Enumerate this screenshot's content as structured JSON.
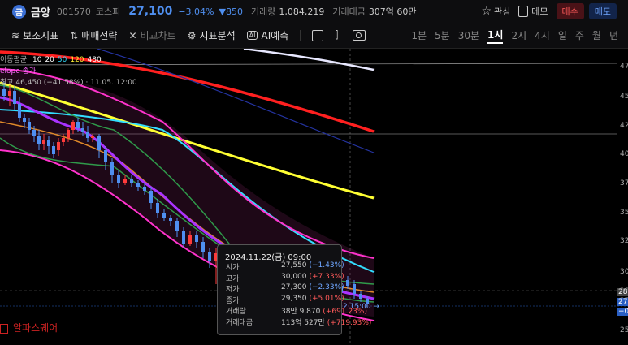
{
  "header": {
    "logo_text": "금",
    "name": "금양",
    "code": "001570",
    "market": "코스피",
    "price": "27,100",
    "change_pct": "−3.04%",
    "change_abs": "▼850",
    "volume_label": "거래량",
    "volume_value": "1,084,219",
    "amount_label": "거래대금",
    "amount_value": "307억 60만",
    "watch_label": "관심",
    "memo_label": "메모",
    "buy_label": "매수",
    "sell_label": "매도"
  },
  "toolbar": {
    "aux": "보조지표",
    "trade": "매매전략",
    "compare": "비교차트",
    "analysis": "지표분석",
    "ai": "AI예측",
    "timeframes": [
      "1분",
      "5분",
      "30분",
      "1시",
      "2시",
      "4시",
      "일",
      "주",
      "월",
      "년"
    ],
    "active_timeframe": "1시"
  },
  "legend": {
    "ma_label": "이동평균",
    "ma_values": [
      "10",
      "20",
      "50",
      "120",
      "480"
    ],
    "ma_colors": [
      "#ffffff",
      "#ffffff",
      "#33ddff",
      "#ffee33",
      "#ffffff"
    ],
    "envelope": "elope 종가",
    "line3": "최고 46,450 (−41.58%) · 11.05. 12:00"
  },
  "yaxis": [
    "47",
    "45",
    "42",
    "40",
    "37",
    "35",
    "32",
    "30",
    "28",
    "27",
    "25"
  ],
  "price_tags": {
    "current": "27",
    "change": "−0.",
    "time": "2 15:00 →"
  },
  "tooltip": {
    "date": "2024.11.22(금) 09:00",
    "rows": [
      {
        "k": "시가",
        "v": "27,550",
        "p": "(−1.43%)",
        "dir": "dn"
      },
      {
        "k": "고가",
        "v": "30,000",
        "p": "(+7.33%)",
        "dir": "up"
      },
      {
        "k": "저가",
        "v": "27,300",
        "p": "(−2.33%)",
        "dir": "dn"
      },
      {
        "k": "종가",
        "v": "29,350",
        "p": "(+5.01%)",
        "dir": "up"
      },
      {
        "k": "거래량",
        "v": "38만 9,870",
        "p": "(+691.23%)",
        "dir": "up"
      },
      {
        "k": "거래대금",
        "v": "113억 527만",
        "p": "(+719.93%)",
        "dir": "up"
      }
    ]
  },
  "watermark": "알파스퀘어",
  "chart_data": {
    "type": "candlestick",
    "timeframe": "1시",
    "y_ticks": [
      "47",
      "45",
      "42",
      "40",
      "37",
      "35",
      "32",
      "30",
      "28",
      "27",
      "25"
    ],
    "tooltip_candle": {
      "date": "2024.11.22(금) 09:00",
      "open": 27550,
      "high": 30000,
      "low": 27300,
      "close": 29350
    }
  },
  "colors": {
    "up": "#ff3b3b",
    "down": "#4f8ff0",
    "ma_red": "#ff2020",
    "ma_yellow": "#ffff33",
    "ma_cyan": "#33ddff",
    "ma_magenta": "#ff33cc",
    "ma_purple": "#aa33ff",
    "ma_green": "#2f9a4a",
    "ma_orange": "#e08a2a"
  }
}
